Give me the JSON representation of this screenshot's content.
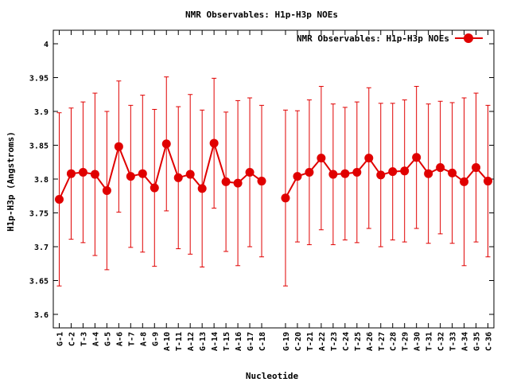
{
  "chart_data": {
    "type": "line",
    "title": "NMR Observables: H1p-H3p NOEs",
    "xlabel": "Nucleotide",
    "ylabel": "H1p-H3p (Angstroms)",
    "ylim": [
      3.58,
      4.02
    ],
    "yticks": [
      3.6,
      3.65,
      3.7,
      3.75,
      3.8,
      3.85,
      3.9,
      3.95,
      4
    ],
    "ytick_labels": [
      "3.6",
      "3.65",
      "3.7",
      "3.75",
      "3.8",
      "3.85",
      "3.9",
      "3.95",
      "4"
    ],
    "grid": false,
    "legend_position": "top-right",
    "color": "#e00000",
    "series": [
      {
        "name": "NMR Observables: H1p-H3p NOEs",
        "points": [
          {
            "x": 1,
            "label": "G-1",
            "y": 3.77,
            "err": 0.128
          },
          {
            "x": 2,
            "label": "C-2",
            "y": 3.808,
            "err": 0.097
          },
          {
            "x": 3,
            "label": "T-3",
            "y": 3.81,
            "err": 0.104
          },
          {
            "x": 4,
            "label": "A-4",
            "y": 3.807,
            "err": 0.12
          },
          {
            "x": 5,
            "label": "G-5",
            "y": 3.783,
            "err": 0.117
          },
          {
            "x": 6,
            "label": "A-6",
            "y": 3.848,
            "err": 0.097
          },
          {
            "x": 7,
            "label": "T-7",
            "y": 3.804,
            "err": 0.105
          },
          {
            "x": 8,
            "label": "A-8",
            "y": 3.808,
            "err": 0.116
          },
          {
            "x": 9,
            "label": "G-9",
            "y": 3.787,
            "err": 0.116
          },
          {
            "x": 10,
            "label": "A-10",
            "y": 3.852,
            "err": 0.099
          },
          {
            "x": 11,
            "label": "T-11",
            "y": 3.802,
            "err": 0.105
          },
          {
            "x": 12,
            "label": "A-12",
            "y": 3.807,
            "err": 0.118
          },
          {
            "x": 13,
            "label": "G-13",
            "y": 3.786,
            "err": 0.116
          },
          {
            "x": 14,
            "label": "A-14",
            "y": 3.853,
            "err": 0.096
          },
          {
            "x": 15,
            "label": "T-15",
            "y": 3.796,
            "err": 0.103
          },
          {
            "x": 16,
            "label": "A-16",
            "y": 3.794,
            "err": 0.122
          },
          {
            "x": 17,
            "label": "G-17",
            "y": 3.81,
            "err": 0.11
          },
          {
            "x": 18,
            "label": "C-18",
            "y": 3.797,
            "err": 0.112
          },
          {
            "x": 20,
            "label": "G-19",
            "y": 3.772,
            "err": 0.13
          },
          {
            "x": 21,
            "label": "C-20",
            "y": 3.804,
            "err": 0.097
          },
          {
            "x": 22,
            "label": "T-21",
            "y": 3.81,
            "err": 0.107
          },
          {
            "x": 23,
            "label": "A-22",
            "y": 3.831,
            "err": 0.106
          },
          {
            "x": 24,
            "label": "T-23",
            "y": 3.807,
            "err": 0.104
          },
          {
            "x": 25,
            "label": "C-24",
            "y": 3.808,
            "err": 0.098
          },
          {
            "x": 26,
            "label": "T-25",
            "y": 3.81,
            "err": 0.104
          },
          {
            "x": 27,
            "label": "A-26",
            "y": 3.831,
            "err": 0.104
          },
          {
            "x": 28,
            "label": "T-27",
            "y": 3.806,
            "err": 0.106
          },
          {
            "x": 29,
            "label": "C-28",
            "y": 3.811,
            "err": 0.101
          },
          {
            "x": 30,
            "label": "T-29",
            "y": 3.812,
            "err": 0.105
          },
          {
            "x": 31,
            "label": "A-30",
            "y": 3.832,
            "err": 0.105
          },
          {
            "x": 32,
            "label": "T-31",
            "y": 3.808,
            "err": 0.103
          },
          {
            "x": 33,
            "label": "C-32",
            "y": 3.817,
            "err": 0.098
          },
          {
            "x": 34,
            "label": "T-33",
            "y": 3.809,
            "err": 0.104
          },
          {
            "x": 35,
            "label": "A-34",
            "y": 3.796,
            "err": 0.124
          },
          {
            "x": 36,
            "label": "G-35",
            "y": 3.817,
            "err": 0.11
          },
          {
            "x": 37,
            "label": "C-36",
            "y": 3.797,
            "err": 0.112
          }
        ]
      }
    ]
  }
}
